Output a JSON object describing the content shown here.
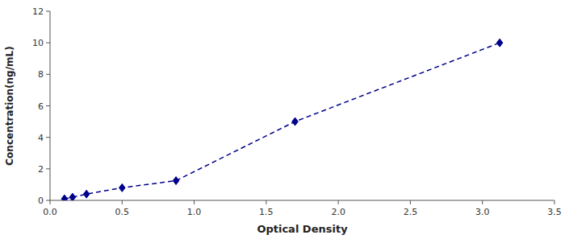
{
  "chart_data": {
    "type": "line",
    "x": [
      0.1,
      0.156,
      0.253,
      0.5,
      0.874,
      1.7,
      3.12
    ],
    "values": [
      0.1,
      0.2,
      0.4,
      0.8,
      1.25,
      5.0,
      10.0
    ],
    "xlabel": "Optical Density",
    "ylabel": "Concentration(ng/mL)",
    "xlim": [
      0,
      3.5
    ],
    "ylim": [
      0,
      12
    ],
    "xticks": [
      {
        "value": 0,
        "label": "0.0"
      },
      0.5,
      {
        "value": 1,
        "label": "1.0"
      },
      1.5,
      {
        "value": 2,
        "label": "2.0"
      },
      2.5,
      {
        "value": 3,
        "label": "3.0"
      },
      3.5
    ],
    "yticks": [
      0,
      2,
      4,
      6,
      8,
      10,
      12
    ],
    "color": "#00008B",
    "marker": "diamond",
    "line_style": "dashed",
    "grid": false
  }
}
